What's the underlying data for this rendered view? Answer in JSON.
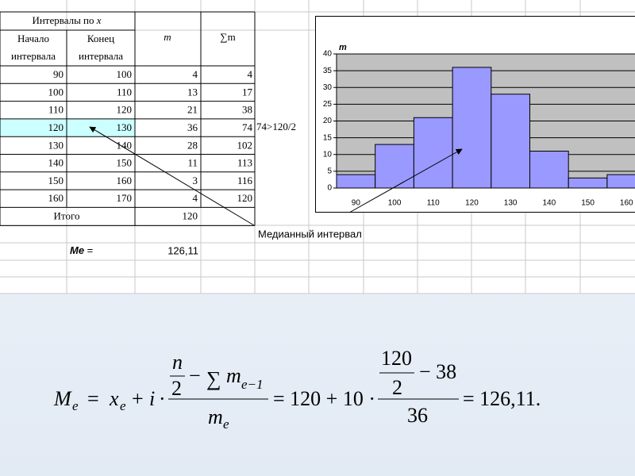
{
  "table": {
    "header": {
      "group": "Интервалы по ",
      "group_var": "x",
      "start": [
        "Начало",
        "интервала"
      ],
      "end": [
        "Конец",
        "интервала"
      ],
      "m": "m",
      "cum": "∑m"
    },
    "rows": [
      [
        90,
        100,
        4,
        4
      ],
      [
        100,
        110,
        13,
        17
      ],
      [
        110,
        120,
        21,
        38
      ],
      [
        120,
        130,
        36,
        74
      ],
      [
        130,
        140,
        28,
        102
      ],
      [
        140,
        150,
        11,
        113
      ],
      [
        150,
        160,
        3,
        116
      ],
      [
        160,
        170,
        4,
        120
      ]
    ],
    "total": {
      "label": "Итого",
      "value": 120
    }
  },
  "note": "74>120/2",
  "median_label": "Медианный интервал",
  "me": {
    "label": "Me",
    "eq": " =",
    "value": "126,11"
  },
  "chart_data": {
    "type": "bar",
    "title": "m",
    "categories": [
      "90",
      "100",
      "110",
      "120",
      "130",
      "140",
      "150",
      "160"
    ],
    "values": [
      4,
      13,
      21,
      36,
      28,
      11,
      3,
      4
    ],
    "color": "#9999ff",
    "background": "#c0c0c0",
    "ylim": [
      0,
      40
    ],
    "yticks": [
      0,
      5,
      10,
      15,
      20,
      25,
      30,
      35,
      40
    ],
    "grid": true
  },
  "formula": {
    "parts": [
      "M",
      "e",
      "=",
      "x",
      "e",
      "+",
      "i",
      "·",
      "n",
      "2",
      "−",
      "∑",
      "m",
      "e−1",
      "m",
      "e",
      "= 120 + 10 ·",
      "120",
      "2",
      "− 38",
      "36",
      "= 126,11."
    ]
  }
}
